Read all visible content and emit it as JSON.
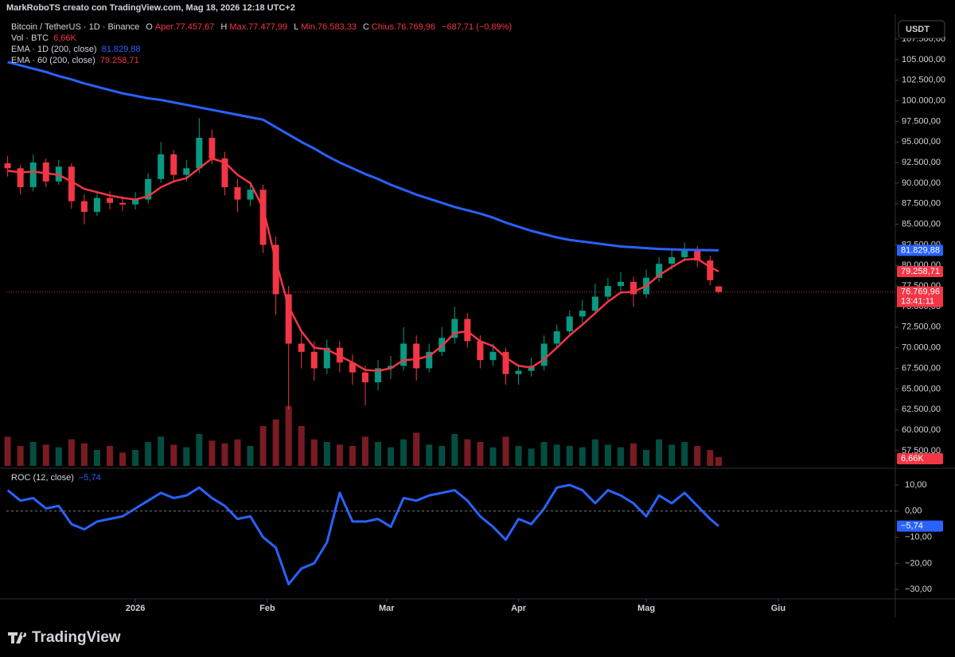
{
  "header": "MarkRoboTS creato con TradingView.com, Mag 18, 2026 12:18 UTC+2",
  "footer": "TradingView",
  "chart_data": [
    {
      "type": "candlestick",
      "title": "Bitcoin / TetherUS · 1D · Binance",
      "ohlc": [
        "O",
        "Aper.77.457,67",
        "H",
        "Max.77.477,99",
        "L",
        "Min.76.583,33",
        "C",
        "Chius.76.769,96",
        "−687,71 (−0,89%)"
      ],
      "currency": "USDT",
      "up_color": "#089981",
      "down_color": "#f23645",
      "x": [
        -30,
        -27,
        -24,
        -21,
        -18,
        -15,
        -12,
        -9,
        -6,
        -3,
        0,
        3,
        6,
        9,
        12,
        15,
        18,
        21,
        24,
        27,
        30,
        33,
        36,
        39,
        42,
        45,
        48,
        51,
        54,
        57,
        60,
        63,
        66,
        69,
        72,
        75,
        78,
        81,
        84,
        87,
        90,
        93,
        96,
        99,
        102,
        105,
        108,
        111,
        114,
        117,
        120,
        123,
        126,
        129,
        132,
        135,
        137
      ],
      "open": [
        92400,
        91800,
        89500,
        92500,
        90200,
        92000,
        87800,
        86500,
        88200,
        87600,
        87400,
        88000,
        90500,
        93500,
        91000,
        91800,
        95500,
        93000,
        89500,
        88000,
        89200,
        82500,
        76500,
        70500,
        69500,
        67500,
        70000,
        68200,
        67000,
        65800,
        67500,
        67800,
        70500,
        67500,
        69500,
        71200,
        73500,
        70800,
        68500,
        69500,
        66800,
        67200,
        67800,
        70500,
        72000,
        73800,
        74500,
        76200,
        77500,
        78000,
        76500,
        78500,
        80200,
        81000,
        81800,
        80600,
        77457.67
      ],
      "high": [
        93300,
        92200,
        93500,
        93000,
        92800,
        92400,
        88600,
        88900,
        89000,
        88400,
        88900,
        91200,
        95000,
        94000,
        92800,
        97900,
        96500,
        93800,
        90500,
        90200,
        89800,
        83500,
        77500,
        72000,
        70800,
        71000,
        70800,
        69200,
        67800,
        68500,
        69000,
        72500,
        71500,
        70500,
        72500,
        75000,
        74200,
        71500,
        70500,
        70000,
        68000,
        68800,
        71500,
        72800,
        74500,
        75800,
        77800,
        78500,
        79200,
        78600,
        79500,
        81000,
        82000,
        82800,
        82400,
        81200,
        77477.99
      ],
      "low": [
        90800,
        88600,
        89000,
        89500,
        89800,
        86900,
        85000,
        86000,
        86800,
        86600,
        86800,
        87500,
        90000,
        90300,
        90200,
        91200,
        92300,
        88500,
        86500,
        87200,
        81500,
        74000,
        62500,
        67500,
        66000,
        66800,
        67000,
        65500,
        63000,
        64800,
        66200,
        67200,
        66000,
        67000,
        69000,
        70500,
        70000,
        67500,
        67800,
        65500,
        65500,
        66500,
        67200,
        70000,
        71500,
        73000,
        74000,
        75500,
        76800,
        75000,
        76000,
        78000,
        79500,
        80500,
        79800,
        77600,
        76583.33
      ],
      "close": [
        91800,
        89500,
        92500,
        90200,
        92000,
        87800,
        86500,
        88200,
        87600,
        87400,
        88000,
        90500,
        93500,
        91000,
        91800,
        95500,
        93000,
        89500,
        88000,
        89200,
        82500,
        76500,
        70500,
        69500,
        67500,
        70000,
        68200,
        67000,
        65800,
        67500,
        67800,
        70500,
        67500,
        69500,
        71200,
        73500,
        70800,
        68500,
        69500,
        66800,
        67200,
        67800,
        70500,
        72000,
        73800,
        74500,
        76200,
        77500,
        78000,
        76500,
        78500,
        80200,
        81000,
        81800,
        80600,
        78200,
        76769.96
      ],
      "last_price": {
        "value": 76769.96,
        "label": "76.769,96"
      },
      "countdown": "13:41:11",
      "series": [
        {
          "name": "EMA · 1D (200, close)",
          "color": "#2962ff",
          "values": [
            104700,
            104300,
            103900,
            103500,
            103000,
            102600,
            102100,
            101700,
            101300,
            100900,
            100600,
            100300,
            100100,
            99800,
            99500,
            99200,
            98900,
            98600,
            98300,
            98000,
            97700,
            96800,
            95900,
            95000,
            94200,
            93300,
            92500,
            91800,
            91100,
            90500,
            89800,
            89200,
            88600,
            88100,
            87600,
            87100,
            86700,
            86300,
            85800,
            85200,
            84700,
            84200,
            83800,
            83400,
            83100,
            82900,
            82700,
            82500,
            82300,
            82200,
            82100,
            82000,
            81950,
            81900,
            81880,
            81850,
            81829.88
          ],
          "last": {
            "value": 81829.88,
            "label": "81.829,88"
          }
        },
        {
          "name": "EMA · 60 (200, close)",
          "color": "#f23645",
          "values": [
            91500,
            91300,
            91400,
            91200,
            91000,
            90200,
            89300,
            88900,
            88500,
            88200,
            88000,
            88400,
            89500,
            90200,
            90600,
            91800,
            93000,
            92500,
            91000,
            90000,
            87000,
            80500,
            75000,
            72000,
            70000,
            69800,
            69000,
            68200,
            67300,
            67200,
            67500,
            68500,
            68600,
            69000,
            70200,
            71800,
            72000,
            70800,
            70200,
            68800,
            67800,
            67600,
            68600,
            70000,
            71500,
            72800,
            74200,
            75600,
            76700,
            76800,
            77500,
            78800,
            79800,
            80700,
            80800,
            79800,
            79258.71
          ],
          "last": {
            "value": 79258.71,
            "label": "79.258,71"
          }
        }
      ],
      "volume": {
        "name": "Vol · BTC",
        "values": [
          22000,
          15000,
          18000,
          16000,
          14000,
          20000,
          17000,
          12000,
          15000,
          10000,
          12000,
          18000,
          22000,
          16000,
          14000,
          24000,
          19000,
          17000,
          20000,
          15000,
          30000,
          35000,
          45000,
          30000,
          20000,
          18000,
          16000,
          15000,
          22000,
          18000,
          14000,
          20000,
          25000,
          16000,
          15000,
          24000,
          20000,
          18000,
          14000,
          22000,
          15000,
          13000,
          18000,
          16000,
          15000,
          14000,
          20000,
          16000,
          14000,
          17000,
          12000,
          20000,
          16000,
          18000,
          15000,
          12000,
          6660
        ],
        "last": {
          "value": 6660,
          "label": "6,66K"
        }
      },
      "xlim": [
        -30.3,
        178.5
      ],
      "xticks": [
        {
          "value": 0,
          "label": "2026"
        },
        {
          "value": 31,
          "label": "Feb"
        },
        {
          "value": 59,
          "label": "Mar"
        },
        {
          "value": 90,
          "label": "Apr"
        },
        {
          "value": 120,
          "label": "Mag"
        },
        {
          "value": 151,
          "label": "Giu"
        }
      ],
      "ylim": [
        55650,
        110500
      ],
      "yticks": [
        {
          "value": 57500,
          "label": "57.500,00"
        },
        {
          "value": 60000,
          "label": "60.000,00"
        },
        {
          "value": 62500,
          "label": "62.500,00"
        },
        {
          "value": 65000,
          "label": "65.000,00"
        },
        {
          "value": 67500,
          "label": "67.500,00"
        },
        {
          "value": 70000,
          "label": "70.000,00"
        },
        {
          "value": 72500,
          "label": "72.500,00"
        },
        {
          "value": 75000,
          "label": "75.000,00"
        },
        {
          "value": 77500,
          "label": "77.500,00"
        },
        {
          "value": 80000,
          "label": "80.000,00"
        },
        {
          "value": 82500,
          "label": "82.500,00"
        },
        {
          "value": 85000,
          "label": "85.000,00"
        },
        {
          "value": 87500,
          "label": "87.500,00"
        },
        {
          "value": 90000,
          "label": "90.000,00"
        },
        {
          "value": 92500,
          "label": "92.500,00"
        },
        {
          "value": 95000,
          "label": "95.000,00"
        },
        {
          "value": 97500,
          "label": "97.500,00"
        },
        {
          "value": 100000,
          "label": "100.000,00"
        },
        {
          "value": 102500,
          "label": "102.500,00"
        },
        {
          "value": 105000,
          "label": "105.000,00"
        },
        {
          "value": 107500,
          "label": "107.500,00"
        }
      ]
    },
    {
      "type": "line",
      "name": "ROC (12, close)",
      "color": "#2962ff",
      "values": [
        8,
        4,
        5,
        1,
        2,
        -5,
        -7,
        -4,
        -3,
        -2,
        1,
        4,
        7,
        5,
        6,
        9,
        5,
        2,
        -3,
        -2,
        -10,
        -14,
        -28,
        -22,
        -20,
        -12,
        7,
        -4,
        -4,
        -3,
        -6,
        5,
        4,
        6,
        7,
        8,
        4,
        -2,
        -6,
        -11,
        -3,
        -5,
        1,
        9,
        10,
        8,
        3,
        8,
        6,
        3,
        -2,
        6,
        3,
        7,
        2,
        -3,
        -5.74
      ],
      "last": {
        "value": -5.74,
        "label": "−5,74"
      },
      "ylim": [
        -33,
        15.8
      ],
      "yticks": [
        {
          "value": 10,
          "label": "10,00"
        },
        {
          "value": 0,
          "label": "0,00"
        },
        {
          "value": -10,
          "label": "−10,00"
        },
        {
          "value": -20,
          "label": "−20,00"
        },
        {
          "value": -30,
          "label": "−30,00"
        }
      ]
    }
  ]
}
